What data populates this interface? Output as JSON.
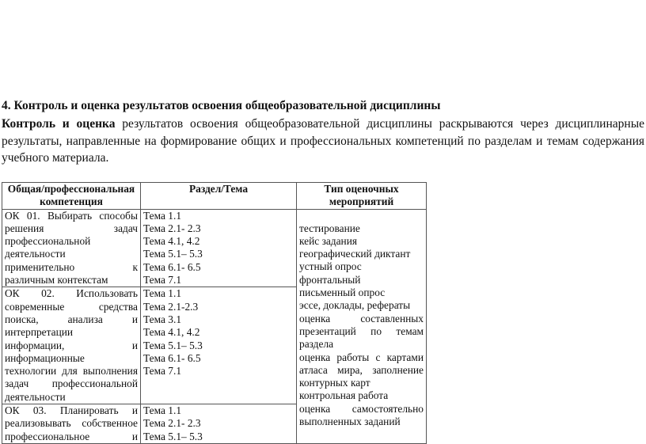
{
  "heading": "4. Контроль и оценка результатов освоения общеобразовательной дисциплины",
  "paragraph": {
    "lead_bold": "Контроль и оценка",
    "lines": [
      " результатов освоения общеобразовательной дисциплины раскрываются через дисциплинарные",
      "результаты, направленные на формирование общих и профессиональных компетенций по разделам и темам содержания",
      "учебного материала."
    ]
  },
  "table": {
    "headers": [
      "Общая/профессиональная компетенция",
      "Раздел/Тема",
      "Тип оценочных мероприятий"
    ],
    "rows": [
      {
        "competence": [
          "ОК 01. Выбирать способы",
          "решения задач",
          "профессиональной",
          "деятельности",
          "применительно к",
          "различным контекстам"
        ],
        "topics": [
          "Тема 1.1",
          "Тема 2.1- 2.3",
          "Тема 4.1, 4.2",
          "Тема 5.1– 5.3",
          "Тема 6.1- 6.5",
          "Тема 7.1"
        ]
      },
      {
        "competence": [
          "ОК 02. Использовать",
          "современные средства",
          "поиска, анализа и",
          "интерпретации",
          "информации, и",
          "информационные",
          "технологии для выполнения",
          "задач профессиональной",
          "деятельности"
        ],
        "topics": [
          "Тема 1.1",
          "Тема 2.1-2.3",
          "Тема 3.1",
          "Тема 4.1, 4.2",
          "Тема 5.1– 5.3",
          "Тема 6.1- 6.5",
          "Тема 7.1"
        ]
      },
      {
        "competence": [
          "ОК 03. Планировать и",
          "реализовывать собственное",
          "профессиональное и"
        ],
        "topics": [
          "Тема 1.1",
          "Тема 2.1- 2.3",
          "Тема 5.1– 5.3"
        ]
      }
    ],
    "assessment": [
      "тестирование",
      "кейс задания",
      "географический диктант",
      "устный опрос",
      "фронтальный",
      "письменный опрос",
      "эссе, доклады, рефераты",
      "оценка составленных",
      "презентаций по темам",
      "раздела",
      "оценка работы с картами",
      "атласа мира, заполнение",
      "контурных карт",
      "контрольная работа",
      "оценка самостоятельно",
      "выполненных заданий"
    ]
  }
}
